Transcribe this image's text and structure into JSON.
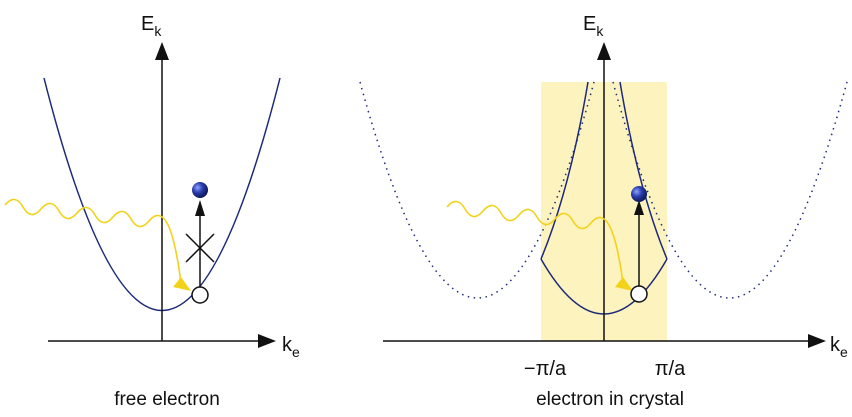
{
  "colors": {
    "band": "#1d2a7a",
    "zone": "#fdf3bf",
    "photon": "#f2d21b",
    "axis": "#111111",
    "electron": "#1e2f8c"
  },
  "left_panel": {
    "y_axis_label": "E",
    "y_axis_sub": "k",
    "x_axis_label": "k",
    "x_axis_sub": "e",
    "caption": "free electron",
    "transition": "forbidden"
  },
  "right_panel": {
    "y_axis_label": "E",
    "y_axis_sub": "k",
    "x_axis_label": "k",
    "x_axis_sub": "e",
    "tick_left": "−π/a",
    "tick_right": "π/a",
    "caption": "electron in crystal",
    "transition": "allowed"
  }
}
